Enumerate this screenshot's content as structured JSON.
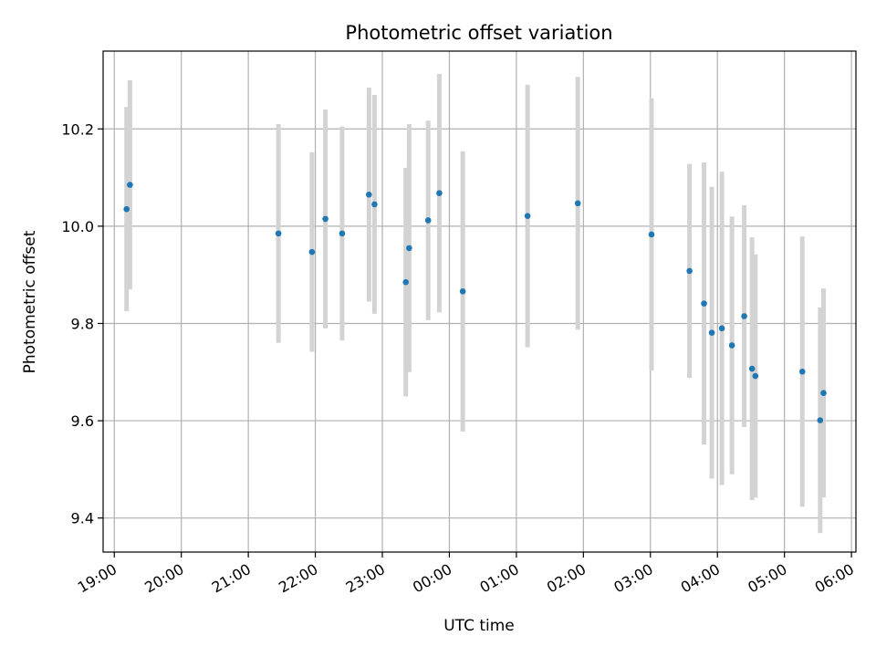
{
  "chart_data": {
    "type": "scatter",
    "title": "Photometric offset variation",
    "xlabel": "UTC time",
    "ylabel": "Photometric offset",
    "grid": true,
    "x_axis": {
      "kind": "time",
      "range": [
        "18:50",
        "06:04"
      ],
      "ticks": [
        "19:00",
        "20:00",
        "21:00",
        "22:00",
        "23:00",
        "00:00",
        "01:00",
        "02:00",
        "03:00",
        "04:00",
        "05:00",
        "06:00"
      ]
    },
    "y_axis": {
      "range": [
        9.33,
        10.36
      ],
      "ticks": [
        "9.4",
        "9.6",
        "9.8",
        "10.0",
        "10.2"
      ]
    },
    "colors": {
      "marker": "#1f77b4",
      "errorbar": "#d3d3d3",
      "grid": "#b0b0b0"
    },
    "points": [
      {
        "t": "19:11",
        "y": 10.035,
        "err": 0.21
      },
      {
        "t": "19:14",
        "y": 10.085,
        "err": 0.215
      },
      {
        "t": "21:27",
        "y": 9.985,
        "err": 0.225
      },
      {
        "t": "21:57",
        "y": 9.947,
        "err": 0.205
      },
      {
        "t": "22:09",
        "y": 10.015,
        "err": 0.225
      },
      {
        "t": "22:24",
        "y": 9.985,
        "err": 0.22
      },
      {
        "t": "22:48",
        "y": 10.065,
        "err": 0.22
      },
      {
        "t": "22:53",
        "y": 10.045,
        "err": 0.225
      },
      {
        "t": "23:21",
        "y": 9.885,
        "err": 0.235
      },
      {
        "t": "23:24",
        "y": 9.955,
        "err": 0.255
      },
      {
        "t": "23:41",
        "y": 10.012,
        "err": 0.205
      },
      {
        "t": "23:51",
        "y": 10.068,
        "err": 0.245
      },
      {
        "t": "00:12",
        "y": 9.866,
        "err": 0.288
      },
      {
        "t": "01:10",
        "y": 10.021,
        "err": 0.27
      },
      {
        "t": "01:55",
        "y": 10.047,
        "err": 0.26
      },
      {
        "t": "03:01",
        "y": 9.983,
        "err": 0.28
      },
      {
        "t": "03:35",
        "y": 9.908,
        "err": 0.22
      },
      {
        "t": "03:48",
        "y": 9.841,
        "err": 0.29
      },
      {
        "t": "03:55",
        "y": 9.781,
        "err": 0.3
      },
      {
        "t": "04:04",
        "y": 9.79,
        "err": 0.322
      },
      {
        "t": "04:13",
        "y": 9.755,
        "err": 0.265
      },
      {
        "t": "04:24",
        "y": 9.815,
        "err": 0.228
      },
      {
        "t": "04:31",
        "y": 9.707,
        "err": 0.27
      },
      {
        "t": "04:34",
        "y": 9.692,
        "err": 0.25
      },
      {
        "t": "05:16",
        "y": 9.701,
        "err": 0.278
      },
      {
        "t": "05:32",
        "y": 9.601,
        "err": 0.232
      },
      {
        "t": "05:35",
        "y": 9.657,
        "err": 0.215
      }
    ]
  }
}
